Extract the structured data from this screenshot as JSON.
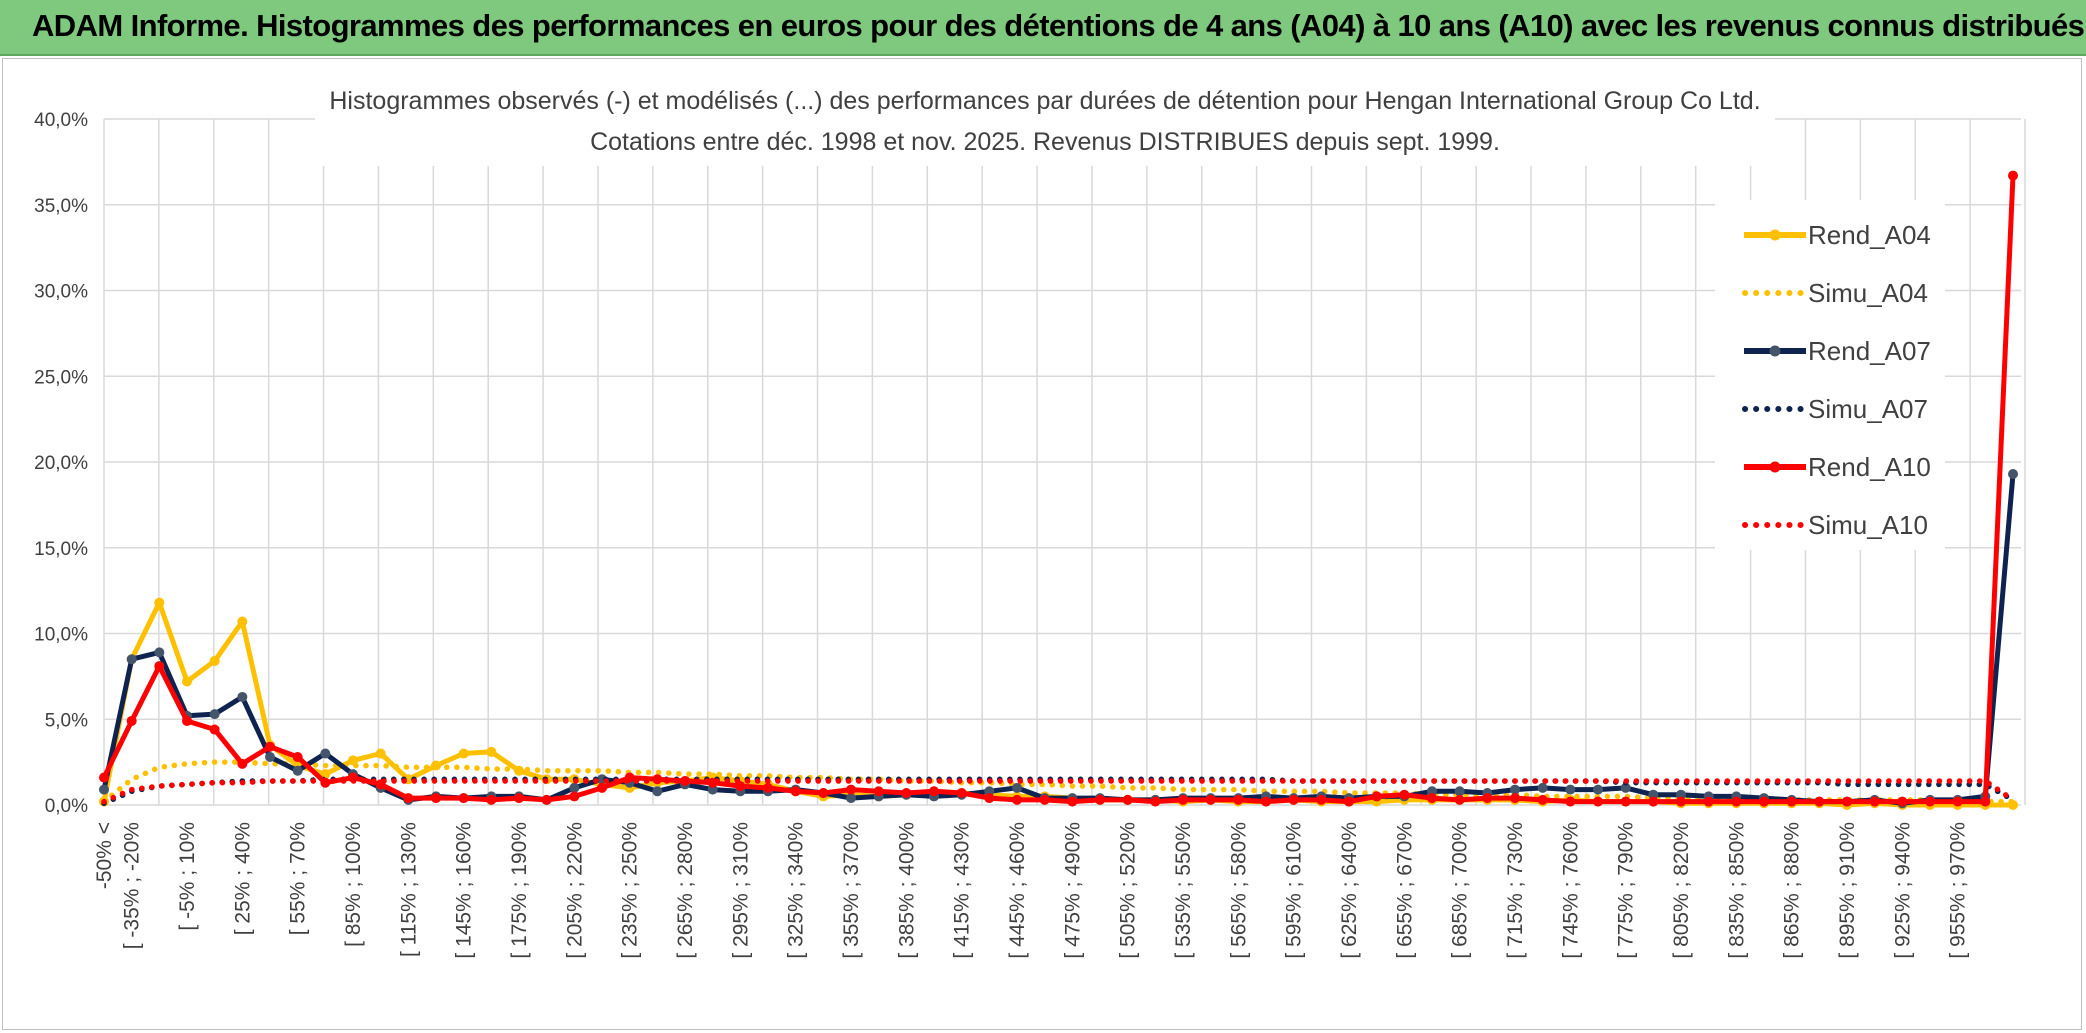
{
  "banner": {
    "title": "ADAM Informe. Histogrammes des performances en euros pour des détentions de 4 ans (A04) à 10 ans (A10) avec les revenus connus distribués",
    "color": "#7fc97f"
  },
  "chart_data": {
    "type": "line",
    "title": "Histogrammes observés (-) et modélisés (...) des performances par durées de détention pour Hengan International Group Co Ltd.",
    "subtitle": "Cotations entre déc. 1998 et nov. 2025. Revenus DISTRIBUES depuis sept. 1999.",
    "xlabel": "",
    "ylabel": "",
    "ylim": [
      0,
      40
    ],
    "yticks": [
      "0,0%",
      "5,0%",
      "10,0%",
      "15,0%",
      "20,0%",
      "25,0%",
      "30,0%",
      "35,0%",
      "40,0%"
    ],
    "grid": true,
    "legend_position": "right",
    "x_tick_labels": [
      "-50% <",
      "[ -35% ; -20%",
      "[ -5% ; 10%",
      "[ 25% ; 40%",
      "[ 55% ; 70%",
      "[ 85% ; 100%",
      "[ 115% ; 130%",
      "[ 145% ; 160%",
      "[ 175% ; 190%",
      "[ 205% ; 220%",
      "[ 235% ; 250%",
      "[ 265% ; 280%",
      "[ 295% ; 310%",
      "[ 325% ; 340%",
      "[ 355% ; 370%",
      "[ 385% ; 400%",
      "[ 415% ; 430%",
      "[ 445% ; 460%",
      "[ 475% ; 490%",
      "[ 505% ; 520%",
      "[ 535% ; 550%",
      "[ 565% ; 580%",
      "[ 595% ; 610%",
      "[ 625% ; 640%",
      "[ 655% ; 670%",
      "[ 685% ; 700%",
      "[ 715% ; 730%",
      "[ 745% ; 760%",
      "[ 775% ; 790%",
      "[ 805% ; 820%",
      "[ 835% ; 850%",
      "[ 865% ; 880%",
      "[ 895% ; 910%",
      "[ 925% ; 940%",
      "[ 955% ; 970%"
    ],
    "n_points": 70,
    "series": [
      {
        "name": "Rend_A04",
        "style": "solid",
        "color": "#ffc000",
        "values": [
          0.2,
          8.5,
          11.8,
          7.2,
          8.4,
          10.7,
          3.5,
          2.3,
          1.8,
          2.6,
          3.0,
          1.5,
          2.3,
          3.0,
          3.1,
          2.0,
          1.5,
          1.5,
          1.2,
          1.0,
          1.3,
          1.4,
          1.6,
          1.4,
          1.2,
          0.8,
          0.5,
          0.6,
          0.5,
          0.6,
          0.8,
          0.7,
          0.6,
          0.5,
          0.5,
          0.4,
          0.3,
          0.3,
          0.3,
          0.2,
          0.3,
          0.2,
          0.2,
          0.3,
          0.2,
          0.2,
          0.2,
          0.3,
          0.3,
          0.3,
          0.3,
          0.3,
          0.2,
          0.3,
          0.2,
          0.2,
          0.2,
          0.1,
          0.1,
          0.1,
          0.1,
          0.1,
          0.1,
          0.0,
          0.1,
          0.0,
          0.0,
          0.0,
          0.0,
          0.0
        ]
      },
      {
        "name": "Simu_A04",
        "style": "dotted",
        "color": "#ffc000",
        "values": [
          0.2,
          1.5,
          2.2,
          2.4,
          2.5,
          2.5,
          2.4,
          2.4,
          2.3,
          2.3,
          2.3,
          2.2,
          2.2,
          2.2,
          2.1,
          2.1,
          2.0,
          2.0,
          2.0,
          1.9,
          1.9,
          1.8,
          1.8,
          1.7,
          1.7,
          1.6,
          1.6,
          1.5,
          1.5,
          1.4,
          1.4,
          1.3,
          1.3,
          1.2,
          1.2,
          1.1,
          1.1,
          1.0,
          1.0,
          0.9,
          0.9,
          0.9,
          0.8,
          0.8,
          0.8,
          0.7,
          0.7,
          0.7,
          0.6,
          0.6,
          0.6,
          0.6,
          0.5,
          0.5,
          0.5,
          0.5,
          0.4,
          0.4,
          0.4,
          0.4,
          0.4,
          0.3,
          0.3,
          0.3,
          0.3,
          0.3,
          0.3,
          0.2,
          0.2,
          0.2
        ]
      },
      {
        "name": "Rend_A07",
        "style": "solid",
        "color": "#0f2350",
        "values": [
          0.9,
          8.5,
          8.9,
          5.2,
          5.3,
          6.3,
          2.8,
          2.0,
          3.0,
          1.8,
          1.0,
          0.3,
          0.5,
          0.4,
          0.5,
          0.5,
          0.3,
          1.0,
          1.5,
          1.3,
          0.8,
          1.2,
          0.9,
          0.8,
          0.8,
          0.9,
          0.7,
          0.4,
          0.5,
          0.6,
          0.5,
          0.6,
          0.8,
          1.0,
          0.4,
          0.4,
          0.4,
          0.3,
          0.3,
          0.4,
          0.4,
          0.4,
          0.5,
          0.4,
          0.5,
          0.4,
          0.5,
          0.5,
          0.8,
          0.8,
          0.7,
          0.9,
          1.0,
          0.9,
          0.9,
          1.0,
          0.6,
          0.6,
          0.5,
          0.5,
          0.4,
          0.3,
          0.2,
          0.2,
          0.3,
          0.1,
          0.3,
          0.3,
          0.5,
          19.3
        ]
      },
      {
        "name": "Simu_A07",
        "style": "dotted",
        "color": "#0f2350",
        "values": [
          0.1,
          0.8,
          1.1,
          1.2,
          1.3,
          1.4,
          1.4,
          1.4,
          1.5,
          1.5,
          1.5,
          1.5,
          1.5,
          1.5,
          1.5,
          1.5,
          1.5,
          1.5,
          1.5,
          1.5,
          1.5,
          1.5,
          1.5,
          1.5,
          1.5,
          1.5,
          1.5,
          1.5,
          1.5,
          1.5,
          1.5,
          1.5,
          1.5,
          1.5,
          1.5,
          1.5,
          1.5,
          1.5,
          1.5,
          1.5,
          1.5,
          1.5,
          1.5,
          1.4,
          1.4,
          1.4,
          1.4,
          1.4,
          1.4,
          1.4,
          1.4,
          1.4,
          1.4,
          1.4,
          1.4,
          1.3,
          1.3,
          1.3,
          1.3,
          1.3,
          1.3,
          1.3,
          1.3,
          1.2,
          1.2,
          1.2,
          1.2,
          1.2,
          1.2,
          0.3
        ]
      },
      {
        "name": "Rend_A10",
        "style": "solid",
        "color": "#ff0000",
        "values": [
          1.6,
          4.9,
          8.1,
          4.9,
          4.4,
          2.4,
          3.4,
          2.8,
          1.3,
          1.6,
          1.2,
          0.4,
          0.4,
          0.4,
          0.3,
          0.4,
          0.3,
          0.5,
          1.0,
          1.6,
          1.5,
          1.4,
          1.3,
          1.1,
          1.0,
          0.8,
          0.7,
          0.9,
          0.8,
          0.7,
          0.8,
          0.7,
          0.4,
          0.3,
          0.3,
          0.2,
          0.3,
          0.3,
          0.2,
          0.3,
          0.3,
          0.3,
          0.2,
          0.3,
          0.3,
          0.2,
          0.5,
          0.6,
          0.4,
          0.3,
          0.4,
          0.4,
          0.3,
          0.2,
          0.2,
          0.2,
          0.2,
          0.2,
          0.2,
          0.2,
          0.2,
          0.2,
          0.2,
          0.2,
          0.2,
          0.2,
          0.2,
          0.2,
          0.2,
          36.7
        ]
      },
      {
        "name": "Simu_A10",
        "style": "dotted",
        "color": "#ff0000",
        "values": [
          0.2,
          0.9,
          1.1,
          1.2,
          1.3,
          1.3,
          1.4,
          1.4,
          1.4,
          1.4,
          1.4,
          1.4,
          1.4,
          1.4,
          1.4,
          1.4,
          1.4,
          1.4,
          1.4,
          1.4,
          1.4,
          1.4,
          1.4,
          1.4,
          1.4,
          1.4,
          1.4,
          1.4,
          1.4,
          1.4,
          1.4,
          1.4,
          1.4,
          1.4,
          1.4,
          1.4,
          1.4,
          1.4,
          1.4,
          1.4,
          1.4,
          1.4,
          1.4,
          1.4,
          1.4,
          1.4,
          1.4,
          1.4,
          1.4,
          1.4,
          1.4,
          1.4,
          1.4,
          1.4,
          1.4,
          1.4,
          1.4,
          1.4,
          1.4,
          1.4,
          1.4,
          1.4,
          1.4,
          1.4,
          1.4,
          1.4,
          1.4,
          1.4,
          1.4,
          0.3
        ]
      }
    ]
  }
}
